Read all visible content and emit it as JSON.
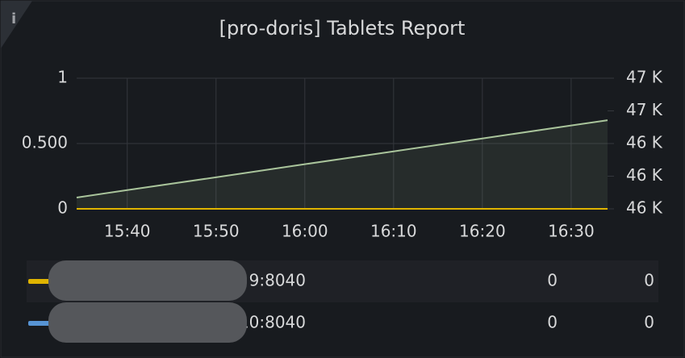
{
  "chart_data": {
    "type": "line",
    "title": "[pro-doris] Tablets Report",
    "x": [
      934.3,
      940,
      950,
      960,
      970,
      980,
      990,
      994.1
    ],
    "xlim": [
      934.3,
      994.1
    ],
    "xticks": [
      {
        "value": 940,
        "label": "15:40"
      },
      {
        "value": 950,
        "label": "15:50"
      },
      {
        "value": 960,
        "label": "16:00"
      },
      {
        "value": 970,
        "label": "16:10"
      },
      {
        "value": 980,
        "label": "16:20"
      },
      {
        "value": 990,
        "label": "16:30"
      }
    ],
    "ylim": [
      0,
      1
    ],
    "yticks": [
      0,
      {
        "value": 0.5,
        "label": "0.500"
      },
      1
    ],
    "y2lim": [
      46100,
      46700
    ],
    "y2ticks": [
      {
        "value": 46100,
        "label": "46 K"
      },
      {
        "value": 46250,
        "label": "46 K"
      },
      {
        "value": 46400,
        "label": "46 K"
      },
      {
        "value": 46550,
        "label": "47 K"
      },
      {
        "value": 46700,
        "label": "47 K"
      }
    ],
    "grid": true,
    "series": [
      {
        "name": "9:8040",
        "color": "#e0b400",
        "values": [
          0,
          0,
          0,
          0,
          0,
          0,
          0,
          0
        ],
        "legend": [
          0,
          0
        ]
      },
      {
        "name": "10:8040",
        "color": "#5794d4",
        "values": [
          0,
          0,
          0,
          0,
          0,
          0,
          0,
          0
        ],
        "legend": [
          0,
          0
        ]
      },
      {
        "color": "#a9c49b",
        "axis": "y2",
        "values": [
          46152,
          46186,
          46245,
          46305,
          46364,
          46423,
          46483,
          46507
        ]
      }
    ]
  }
}
